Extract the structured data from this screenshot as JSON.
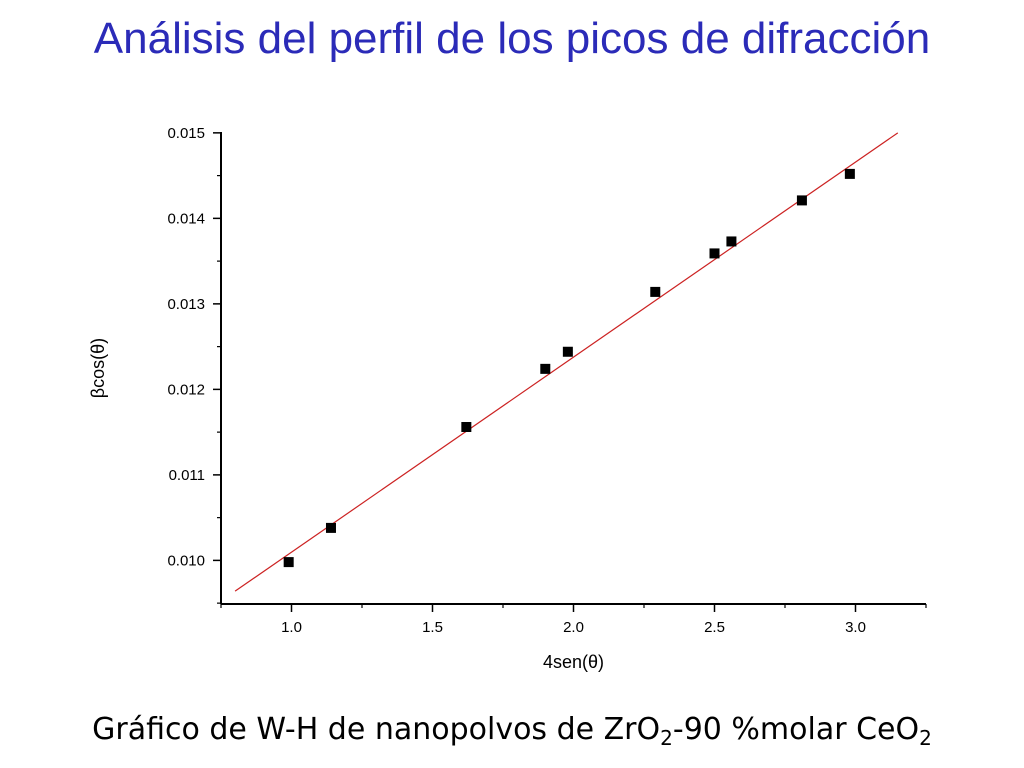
{
  "slide": {
    "title": "Análisis del perfil de los picos de difracción",
    "caption": {
      "part1": "Gráfico de W-H de nanopolvos de ZrO",
      "sub1": "2",
      "part2": "-90 %molar CeO",
      "sub2": "2"
    }
  },
  "chart_data": {
    "type": "scatter",
    "xlabel": "4sen(θ)",
    "ylabel": "βcos(θ)",
    "xlim": [
      0.75,
      3.25
    ],
    "ylim": [
      0.00949,
      0.01501
    ],
    "x_ticks": [
      1.0,
      1.5,
      2.0,
      2.5,
      3.0
    ],
    "x_tick_labels": [
      "1.0",
      "1.5",
      "2.0",
      "2.5",
      "3.0"
    ],
    "y_ticks": [
      0.01,
      0.011,
      0.012,
      0.013,
      0.014,
      0.015
    ],
    "y_tick_labels": [
      "0.010",
      "0.011",
      "0.012",
      "0.013",
      "0.014",
      "0.015"
    ],
    "grid": false,
    "series": [
      {
        "marker": "square",
        "color": "#000000",
        "x": [
          0.99,
          1.14,
          1.62,
          1.9,
          1.98,
          2.29,
          2.5,
          2.56,
          2.81,
          2.98
        ],
        "y": [
          0.00998,
          0.01038,
          0.01156,
          0.01224,
          0.01244,
          0.01314,
          0.01359,
          0.01373,
          0.01421,
          0.01452
        ]
      }
    ],
    "fit_line": {
      "color": "#cc2222",
      "x": [
        0.8,
        3.15
      ],
      "y": [
        0.00964,
        0.015
      ]
    }
  }
}
